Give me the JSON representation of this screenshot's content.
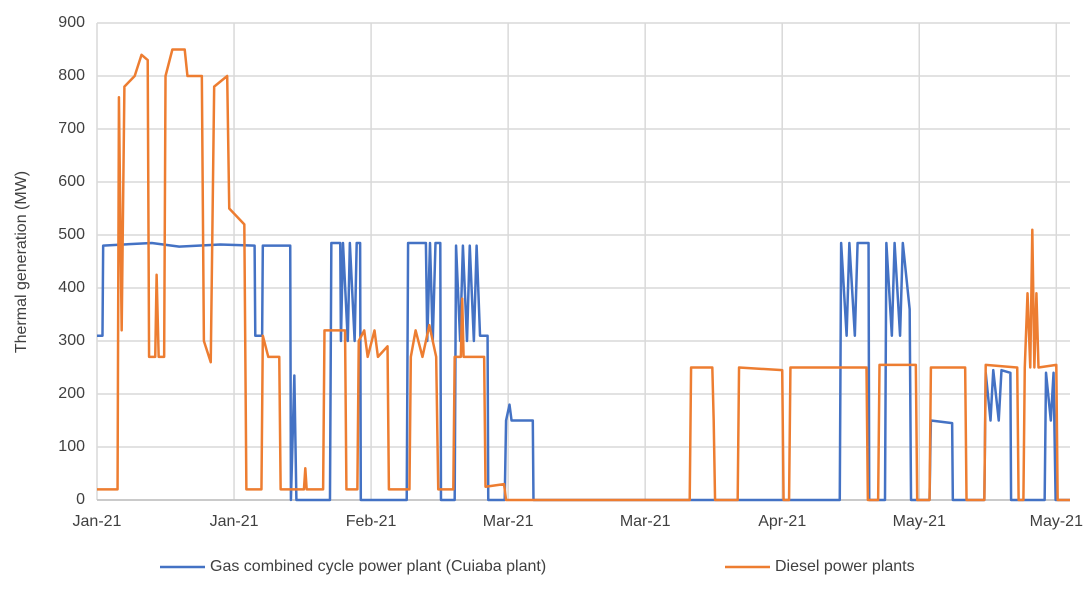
{
  "chart_data": {
    "type": "line",
    "y_label": "Thermal generation (MW)",
    "ylim": [
      0,
      900
    ],
    "yticks": [
      0,
      100,
      200,
      300,
      400,
      500,
      600,
      700,
      800,
      900
    ],
    "xlim": [
      0,
      142
    ],
    "xticks": [
      {
        "value": 0,
        "label": "Jan-21"
      },
      {
        "value": 20,
        "label": "Jan-21"
      },
      {
        "value": 40,
        "label": "Feb-21"
      },
      {
        "value": 60,
        "label": "Mar-21"
      },
      {
        "value": 80,
        "label": "Mar-21"
      },
      {
        "value": 100,
        "label": "Apr-21"
      },
      {
        "value": 120,
        "label": "May-21"
      },
      {
        "value": 140,
        "label": "May-21"
      }
    ],
    "grid": true,
    "legend": "bottom",
    "series": [
      {
        "name": "Gas combined cycle power plant (Cuiaba plant)",
        "color": "#4472c4",
        "x": [
          0,
          0.8,
          0.9,
          8,
          12,
          18,
          23,
          23.1,
          24.1,
          24.2,
          28.2,
          28.3,
          28.8,
          29.1,
          34,
          34.2,
          35.5,
          35.6,
          35.9,
          36.6,
          36.9,
          37.6,
          37.9,
          38.4,
          38.5,
          45.2,
          45.4,
          48,
          48.2,
          48.6,
          49,
          49.4,
          50.1,
          50.2,
          52.2,
          52.4,
          53,
          53.4,
          54,
          54.4,
          55,
          55.4,
          55.9,
          57,
          57.1,
          59.5,
          59.7,
          60.2,
          60.5,
          63.6,
          63.7,
          108.4,
          108.6,
          109.4,
          109.8,
          110.6,
          111,
          112.6,
          112.7,
          115,
          115.2,
          116,
          116.4,
          117.2,
          117.6,
          118.6,
          118.8,
          121.5,
          121.7,
          124.8,
          124.9,
          129.5,
          129.7,
          130.4,
          130.8,
          131.6,
          132,
          133.3,
          133.4,
          138.3,
          138.5,
          139.2,
          139.6,
          139.9,
          142
        ],
        "values": [
          310,
          310,
          480,
          485,
          478,
          482,
          480,
          310,
          310,
          480,
          480,
          0,
          235,
          0,
          0,
          485,
          485,
          300,
          485,
          300,
          485,
          300,
          485,
          485,
          0,
          0,
          485,
          485,
          300,
          485,
          300,
          485,
          485,
          0,
          0,
          480,
          300,
          480,
          300,
          480,
          300,
          480,
          310,
          310,
          0,
          0,
          150,
          180,
          150,
          150,
          0,
          0,
          485,
          310,
          485,
          310,
          485,
          485,
          0,
          0,
          485,
          310,
          485,
          310,
          485,
          360,
          0,
          0,
          150,
          145,
          0,
          0,
          240,
          150,
          245,
          150,
          245,
          240,
          0,
          0,
          240,
          150,
          240,
          0,
          0
        ]
      },
      {
        "name": "Diesel power plants",
        "color": "#ed7d31",
        "x": [
          0,
          3,
          3.2,
          3.6,
          4,
          5.5,
          6.5,
          7.4,
          7.6,
          8.5,
          8.7,
          9,
          9.8,
          10,
          11,
          12.8,
          13.2,
          15.3,
          15.6,
          16.6,
          17.1,
          19,
          19.3,
          21.5,
          21.8,
          24,
          24.2,
          25,
          26.6,
          26.8,
          30.2,
          30.4,
          30.6,
          33,
          33.2,
          36.2,
          36.4,
          38,
          38.2,
          39,
          39.5,
          40.5,
          41,
          42.4,
          42.6,
          45.6,
          45.8,
          46.5,
          47.5,
          48.5,
          49.5,
          49.8,
          52,
          52.2,
          53.1,
          53.3,
          53.5,
          56.5,
          56.7,
          59.4,
          59.7,
          86.5,
          86.7,
          89.8,
          90,
          90.2,
          93.5,
          93.7,
          100,
          100.2,
          101,
          101.2,
          112.3,
          112.5,
          114,
          114.2,
          119.5,
          119.7,
          121.5,
          121.7,
          126.7,
          126.9,
          129.5,
          129.7,
          134.3,
          134.5,
          135.2,
          135.4,
          135.8,
          136.2,
          136.5,
          136.8,
          137.1,
          137.4,
          140,
          140.2,
          142
        ],
        "values": [
          20,
          20,
          760,
          320,
          780,
          800,
          840,
          830,
          270,
          270,
          425,
          270,
          270,
          800,
          850,
          850,
          800,
          800,
          300,
          260,
          780,
          800,
          550,
          520,
          20,
          20,
          310,
          270,
          270,
          20,
          20,
          60,
          20,
          20,
          320,
          320,
          20,
          20,
          300,
          320,
          270,
          320,
          270,
          290,
          20,
          20,
          270,
          320,
          270,
          330,
          270,
          20,
          20,
          270,
          270,
          380,
          270,
          270,
          25,
          30,
          0,
          0,
          250,
          250,
          150,
          0,
          0,
          250,
          245,
          0,
          0,
          250,
          250,
          0,
          0,
          255,
          255,
          0,
          0,
          250,
          250,
          0,
          0,
          255,
          250,
          0,
          0,
          250,
          390,
          250,
          510,
          250,
          390,
          250,
          255,
          0,
          0
        ]
      }
    ]
  }
}
